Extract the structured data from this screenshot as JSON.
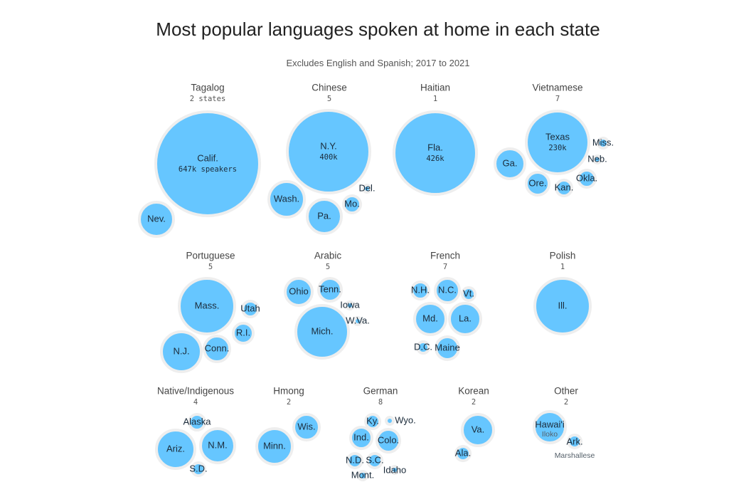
{
  "title": "Most popular languages spoken at home in each state",
  "subtitle": "Excludes English and Spanish; 2017 to 2021",
  "colors": {
    "bubble": "#66c6ff",
    "stroke": "#eeeeee"
  },
  "chart_data": {
    "type": "bubble",
    "title": "Most popular languages spoken at home in each state",
    "subtitle": "Excludes English and Spanish; 2017 to 2021",
    "groups": [
      {
        "language": "Tagalog",
        "count_label": "2 states",
        "count": 2,
        "states": [
          {
            "state": "Calif.",
            "speakers_label": "647k speakers",
            "speakers": 647000
          },
          {
            "state": "Nev."
          }
        ]
      },
      {
        "language": "Chinese",
        "count_label": "5",
        "count": 5,
        "states": [
          {
            "state": "N.Y.",
            "speakers_label": "400k",
            "speakers": 400000
          },
          {
            "state": "Wash."
          },
          {
            "state": "Pa."
          },
          {
            "state": "Mo."
          },
          {
            "state": "Del."
          }
        ]
      },
      {
        "language": "Haitian",
        "count_label": "1",
        "count": 1,
        "states": [
          {
            "state": "Fla.",
            "speakers_label": "426k",
            "speakers": 426000
          }
        ]
      },
      {
        "language": "Vietnamese",
        "count_label": "7",
        "count": 7,
        "states": [
          {
            "state": "Texas",
            "speakers_label": "230k",
            "speakers": 230000
          },
          {
            "state": "Ga."
          },
          {
            "state": "Ore."
          },
          {
            "state": "Kan."
          },
          {
            "state": "Okla."
          },
          {
            "state": "Neb."
          },
          {
            "state": "Miss."
          }
        ]
      },
      {
        "language": "Portuguese",
        "count_label": "5",
        "count": 5,
        "states": [
          {
            "state": "Mass."
          },
          {
            "state": "N.J."
          },
          {
            "state": "Conn."
          },
          {
            "state": "R.I."
          },
          {
            "state": "Utah"
          }
        ]
      },
      {
        "language": "Arabic",
        "count_label": "5",
        "count": 5,
        "states": [
          {
            "state": "Mich."
          },
          {
            "state": "Ohio"
          },
          {
            "state": "Tenn."
          },
          {
            "state": "Iowa"
          },
          {
            "state": "W.Va."
          }
        ]
      },
      {
        "language": "French",
        "count_label": "7",
        "count": 7,
        "states": [
          {
            "state": "Md."
          },
          {
            "state": "La."
          },
          {
            "state": "N.C."
          },
          {
            "state": "N.H."
          },
          {
            "state": "Maine"
          },
          {
            "state": "Vt."
          },
          {
            "state": "D.C."
          }
        ]
      },
      {
        "language": "Polish",
        "count_label": "1",
        "count": 1,
        "states": [
          {
            "state": "Ill."
          }
        ]
      },
      {
        "language": "Native/Indigenous",
        "count_label": "4",
        "count": 4,
        "states": [
          {
            "state": "Ariz."
          },
          {
            "state": "N.M."
          },
          {
            "state": "Alaska"
          },
          {
            "state": "S.D."
          }
        ]
      },
      {
        "language": "Hmong",
        "count_label": "2",
        "count": 2,
        "states": [
          {
            "state": "Minn."
          },
          {
            "state": "Wis."
          }
        ]
      },
      {
        "language": "German",
        "count_label": "8",
        "count": 8,
        "states": [
          {
            "state": "Ind."
          },
          {
            "state": "Colo."
          },
          {
            "state": "Ky."
          },
          {
            "state": "N.D."
          },
          {
            "state": "S.C."
          },
          {
            "state": "Mont."
          },
          {
            "state": "Idaho"
          },
          {
            "state": "Wyo."
          }
        ]
      },
      {
        "language": "Korean",
        "count_label": "2",
        "count": 2,
        "states": [
          {
            "state": "Va."
          },
          {
            "state": "Ala."
          }
        ]
      },
      {
        "language": "Other",
        "count_label": "2",
        "count": 2,
        "states": [
          {
            "state": "Hawai'i",
            "sub_label": "Iloko"
          },
          {
            "state": "Ark.",
            "sub_label": "Marshallese"
          }
        ]
      }
    ]
  }
}
